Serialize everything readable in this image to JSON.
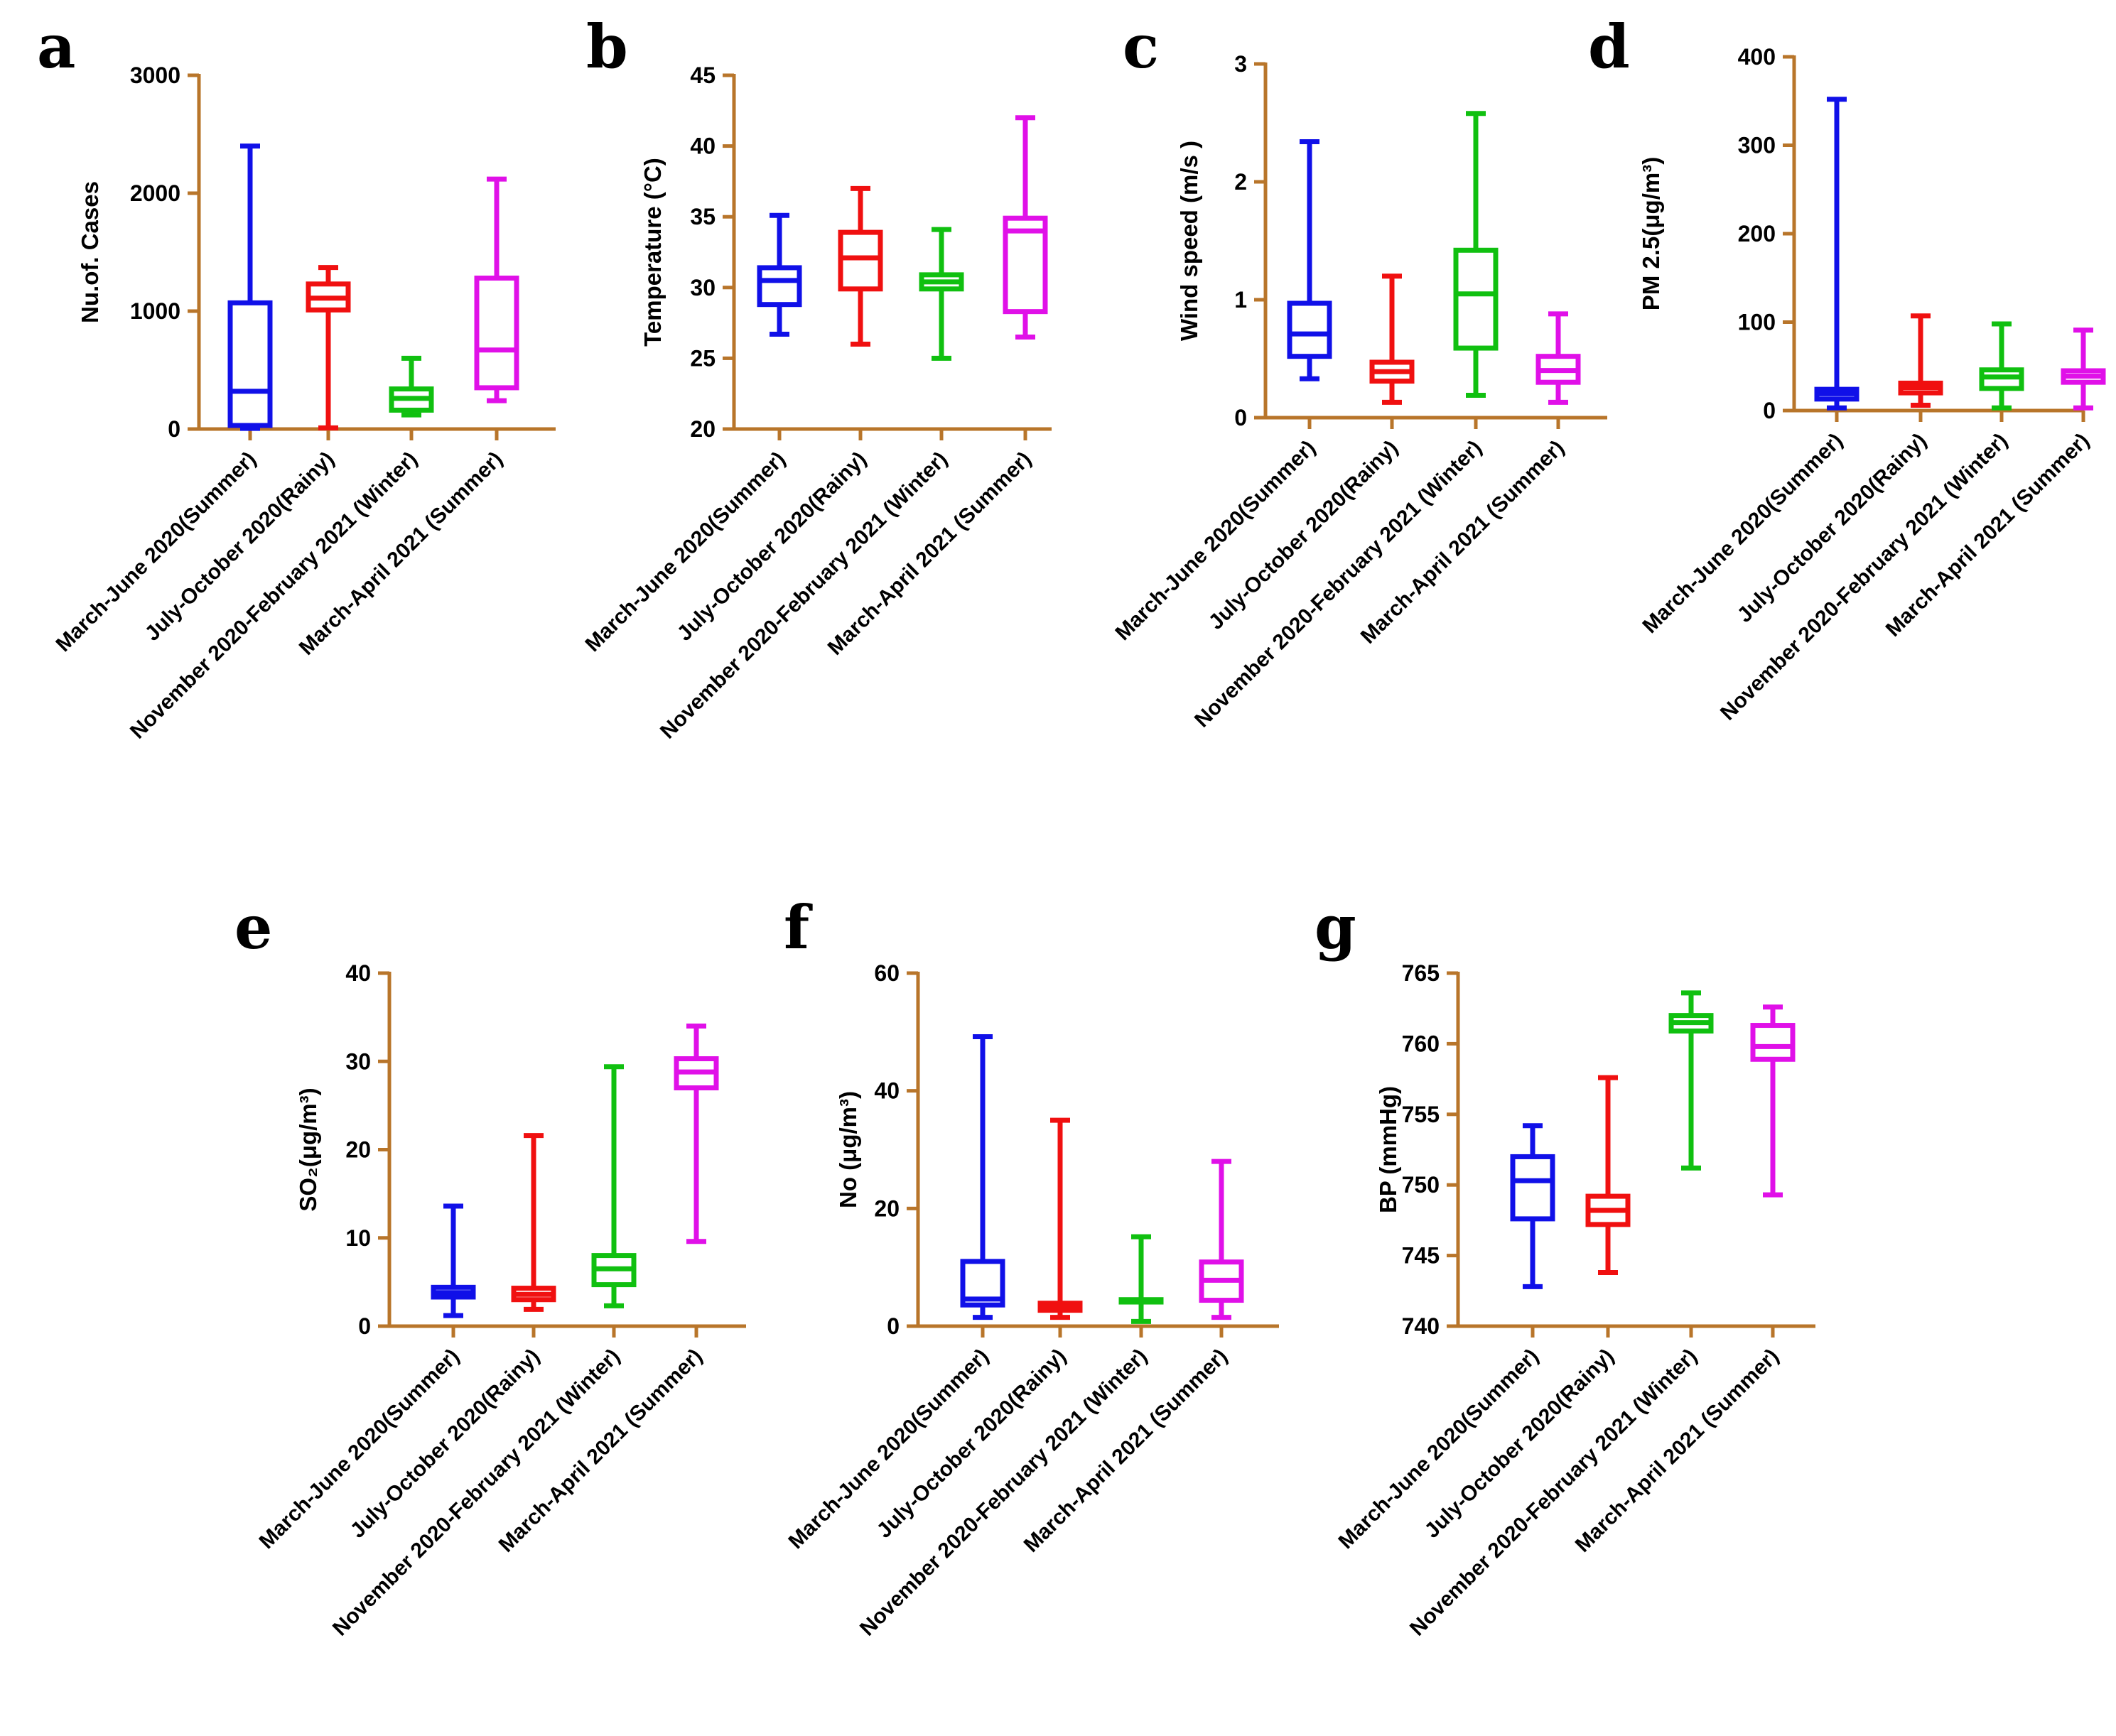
{
  "categories": [
    "March-June 2020(Summer)",
    "July-October 2020(Rainy)",
    "November 2020-February 2021 (Winter)",
    "March-April 2021 (Summer)"
  ],
  "colors": [
    "#1010e8",
    "#f01010",
    "#10c010",
    "#e010e8"
  ],
  "chart_data": [
    {
      "type": "box",
      "letter": "a",
      "ylabel": "Nu.of. Cases",
      "ylim": [
        0,
        3000
      ],
      "ticks": [
        0,
        1000,
        2000,
        3000
      ],
      "tick_labels": [
        "0",
        "1000",
        "2000",
        "3000"
      ],
      "boxes": [
        {
          "min": 5,
          "q1": 30,
          "median": 320,
          "q3": 1070,
          "max": 2400
        },
        {
          "min": 10,
          "q1": 1010,
          "median": 1110,
          "q3": 1230,
          "max": 1370
        },
        {
          "min": 120,
          "q1": 160,
          "median": 260,
          "q3": 340,
          "max": 600
        },
        {
          "min": 240,
          "q1": 350,
          "median": 670,
          "q3": 1280,
          "max": 2120
        }
      ]
    },
    {
      "type": "box",
      "letter": "b",
      "ylabel": "Temperature (°C)",
      "ylim": [
        20,
        45
      ],
      "ticks": [
        20,
        25,
        30,
        35,
        40,
        45
      ],
      "tick_labels": [
        "20",
        "25",
        "30",
        "35",
        "40",
        "45"
      ],
      "boxes": [
        {
          "min": 26.7,
          "q1": 28.8,
          "median": 30.5,
          "q3": 31.4,
          "max": 35.1
        },
        {
          "min": 26.0,
          "q1": 29.9,
          "median": 32.1,
          "q3": 33.9,
          "max": 37.0
        },
        {
          "min": 25.0,
          "q1": 29.9,
          "median": 30.4,
          "q3": 30.9,
          "max": 34.1
        },
        {
          "min": 26.5,
          "q1": 28.3,
          "median": 34.0,
          "q3": 34.9,
          "max": 42.0
        }
      ]
    },
    {
      "type": "box",
      "letter": "c",
      "ylabel": "Wind speed (m/s )",
      "ylim": [
        0,
        3
      ],
      "ticks": [
        0,
        1,
        2,
        3
      ],
      "tick_labels": [
        "0",
        "1",
        "2",
        "3"
      ],
      "boxes": [
        {
          "min": 0.33,
          "q1": 0.52,
          "median": 0.71,
          "q3": 0.97,
          "max": 2.34
        },
        {
          "min": 0.13,
          "q1": 0.31,
          "median": 0.39,
          "q3": 0.47,
          "max": 1.2
        },
        {
          "min": 0.19,
          "q1": 0.59,
          "median": 1.05,
          "q3": 1.42,
          "max": 2.58
        },
        {
          "min": 0.13,
          "q1": 0.3,
          "median": 0.4,
          "q3": 0.52,
          "max": 0.88
        }
      ]
    },
    {
      "type": "box",
      "letter": "d",
      "ylabel": "PM 2.5(μg/m³)",
      "ylim": [
        0,
        400
      ],
      "ticks": [
        0,
        100,
        200,
        300,
        400
      ],
      "tick_labels": [
        "0",
        "100",
        "200",
        "300",
        "400"
      ],
      "boxes": [
        {
          "min": 3,
          "q1": 13,
          "median": 19,
          "q3": 24,
          "max": 352
        },
        {
          "min": 6,
          "q1": 20,
          "median": 26,
          "q3": 31,
          "max": 107
        },
        {
          "min": 3,
          "q1": 25,
          "median": 38,
          "q3": 46,
          "max": 98
        },
        {
          "min": 3,
          "q1": 32,
          "median": 39,
          "q3": 45,
          "max": 91
        }
      ]
    },
    {
      "type": "box",
      "letter": "e",
      "ylabel": "SO₂(μg/m³)",
      "ylim": [
        0,
        40
      ],
      "ticks": [
        0,
        10,
        20,
        30,
        40
      ],
      "tick_labels": [
        "0",
        "10",
        "20",
        "30",
        "40"
      ],
      "boxes": [
        {
          "min": 1.2,
          "q1": 3.3,
          "median": 3.8,
          "q3": 4.4,
          "max": 13.6
        },
        {
          "min": 1.9,
          "q1": 3.0,
          "median": 3.6,
          "q3": 4.3,
          "max": 21.6
        },
        {
          "min": 2.3,
          "q1": 4.7,
          "median": 6.5,
          "q3": 8.0,
          "max": 29.4
        },
        {
          "min": 9.6,
          "q1": 27.0,
          "median": 28.8,
          "q3": 30.3,
          "max": 34.0
        }
      ]
    },
    {
      "type": "box",
      "letter": "f",
      "ylabel": "No (μg/m³)",
      "ylim": [
        0,
        60
      ],
      "ticks": [
        0,
        20,
        40,
        60
      ],
      "tick_labels": [
        "0",
        "20",
        "40",
        "60"
      ],
      "boxes": [
        {
          "min": 1.5,
          "q1": 3.6,
          "median": 4.6,
          "q3": 11.0,
          "max": 49.2
        },
        {
          "min": 1.5,
          "q1": 2.7,
          "median": 3.4,
          "q3": 3.9,
          "max": 35.0
        },
        {
          "min": 0.8,
          "q1": 4.1,
          "median": 4.3,
          "q3": 4.5,
          "max": 15.2
        },
        {
          "min": 1.5,
          "q1": 4.4,
          "median": 7.8,
          "q3": 10.9,
          "max": 28.0
        }
      ]
    },
    {
      "type": "box",
      "letter": "g",
      "ylabel": "BP (mmHg)",
      "ylim": [
        740,
        765
      ],
      "ticks": [
        740,
        745,
        750,
        755,
        760,
        765
      ],
      "tick_labels": [
        "740",
        "745",
        "750",
        "755",
        "760",
        "765"
      ],
      "boxes": [
        {
          "min": 742.8,
          "q1": 747.6,
          "median": 750.3,
          "q3": 752.0,
          "max": 754.2
        },
        {
          "min": 743.8,
          "q1": 747.2,
          "median": 748.2,
          "q3": 749.2,
          "max": 757.6
        },
        {
          "min": 751.2,
          "q1": 760.9,
          "median": 761.5,
          "q3": 762.0,
          "max": 763.6
        },
        {
          "min": 749.3,
          "q1": 758.9,
          "median": 759.8,
          "q3": 761.3,
          "max": 762.6
        }
      ]
    }
  ]
}
